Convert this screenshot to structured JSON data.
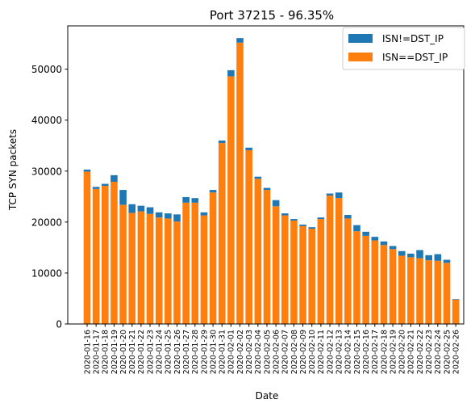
{
  "chart_data": {
    "type": "bar",
    "stacked": true,
    "title": "Port 37215 - 96.35%",
    "xlabel": "Date",
    "ylabel": "TCP SYN packets",
    "ylim": [
      0,
      58500
    ],
    "yticks": [
      0,
      10000,
      20000,
      30000,
      40000,
      50000
    ],
    "grid": false,
    "legend_position": "top-right",
    "categories": [
      "2020-01-16",
      "2020-01-17",
      "2020-01-18",
      "2020-01-19",
      "2020-01-20",
      "2020-01-21",
      "2020-01-22",
      "2020-01-23",
      "2020-01-24",
      "2020-01-25",
      "2020-01-26",
      "2020-01-27",
      "2020-01-28",
      "2020-01-29",
      "2020-01-30",
      "2020-01-31",
      "2020-02-01",
      "2020-02-02",
      "2020-02-03",
      "2020-02-04",
      "2020-02-05",
      "2020-02-06",
      "2020-02-07",
      "2020-02-08",
      "2020-02-09",
      "2020-02-10",
      "2020-02-11",
      "2020-02-12",
      "2020-02-13",
      "2020-02-14",
      "2020-02-15",
      "2020-02-16",
      "2020-02-17",
      "2020-02-18",
      "2020-02-19",
      "2020-02-20",
      "2020-02-21",
      "2020-02-22",
      "2020-02-23",
      "2020-02-24",
      "2020-02-25",
      "2020-02-26"
    ],
    "series": [
      {
        "name": "ISN==DST_IP",
        "color": "#ff7f0e",
        "values": [
          29900,
          26500,
          27100,
          27900,
          23400,
          21800,
          22100,
          21600,
          20900,
          20700,
          20100,
          23800,
          23800,
          21300,
          25800,
          35500,
          48600,
          55200,
          34100,
          28500,
          26300,
          23100,
          21300,
          20300,
          19200,
          18700,
          20600,
          25200,
          24700,
          20700,
          18200,
          17300,
          16400,
          15500,
          14700,
          13400,
          13100,
          12900,
          12500,
          12400,
          12000,
          4800
        ]
      },
      {
        "name": "ISN!=DST_IP",
        "color": "#1f77b4",
        "values": [
          400,
          400,
          400,
          1300,
          2900,
          1700,
          1100,
          1300,
          1000,
          1000,
          1400,
          1100,
          900,
          600,
          500,
          500,
          1200,
          900,
          500,
          400,
          400,
          1200,
          400,
          300,
          300,
          300,
          300,
          400,
          1100,
          700,
          1200,
          800,
          700,
          700,
          600,
          900,
          700,
          1600,
          1000,
          1300,
          600,
          100
        ]
      }
    ]
  }
}
